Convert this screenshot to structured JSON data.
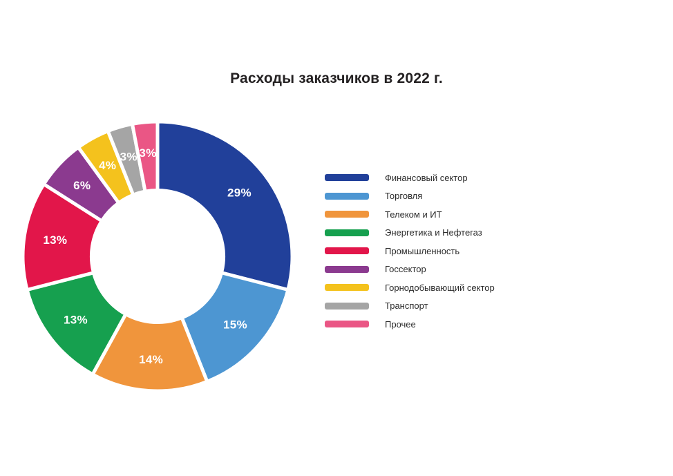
{
  "title": {
    "text": "Расходы заказчиков в 2022 г."
  },
  "chart_data": {
    "type": "pie",
    "subtype": "donut",
    "title": "Расходы заказчиков в 2022 г.",
    "unit": "%",
    "start_angle_deg": 0,
    "direction": "clockwise",
    "inner_radius_ratio": 0.49,
    "legend_position": "right",
    "separator_color": "#ffffff",
    "label_color": "#ffffff",
    "segments": [
      {
        "label": "Финансовый сектор",
        "value": 29,
        "display": "29%",
        "color": "#21409A"
      },
      {
        "label": "Торговля",
        "value": 15,
        "display": "15%",
        "color": "#4D96D2"
      },
      {
        "label": "Телеком и ИТ",
        "value": 14,
        "display": "14%",
        "color": "#F0953C"
      },
      {
        "label": "Энергетика и Нефтегаз",
        "value": 13,
        "display": "13%",
        "color": "#16A04F"
      },
      {
        "label": "Промышленность",
        "value": 13,
        "display": "13%",
        "color": "#E2164A"
      },
      {
        "label": "Госсектор",
        "value": 6,
        "display": "6%",
        "color": "#8B3A8F"
      },
      {
        "label": "Горнодобывающий сектор",
        "value": 4,
        "display": "4%",
        "color": "#F4C21D"
      },
      {
        "label": "Транспорт",
        "value": 3,
        "display": "3%",
        "color": "#A5A5A5"
      },
      {
        "label": "Прочее",
        "value": 3,
        "display": "3%",
        "color": "#EA5685"
      }
    ]
  }
}
